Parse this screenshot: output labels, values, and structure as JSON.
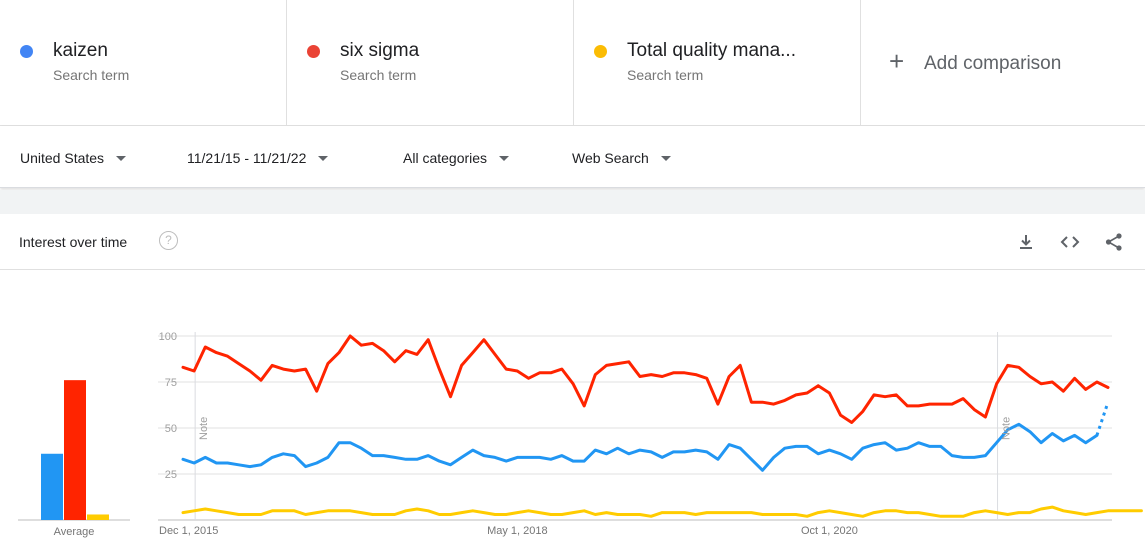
{
  "terms": [
    {
      "name": "kaizen",
      "sub": "Search term",
      "color": "#1a73e8",
      "dot": "#4285f4"
    },
    {
      "name": "six sigma",
      "sub": "Search term",
      "color": "#ea4335",
      "dot": "#ea4335"
    },
    {
      "name": "Total quality mana...",
      "sub": "Search term",
      "color": "#fbbc04",
      "dot": "#fbbc04"
    }
  ],
  "add_comparison": "Add comparison",
  "filters": {
    "region": "United States",
    "date_range": "11/21/15 - 11/21/22",
    "category": "All categories",
    "search_type": "Web Search"
  },
  "card": {
    "title": "Interest over time",
    "help": "?"
  },
  "chart_data": {
    "type": "line",
    "title": "Interest over time",
    "ylim": [
      0,
      100
    ],
    "y_ticks": [
      "100",
      "75",
      "50",
      "25"
    ],
    "x_ticks": [
      "Dec 1, 2015",
      "May 1, 2018",
      "Oct 1, 2020"
    ],
    "annotations": [
      "Note",
      "Note"
    ],
    "average_label": "Average",
    "averages": [
      {
        "series": "kaizen",
        "value": 36,
        "color": "#2196f3"
      },
      {
        "series": "six sigma",
        "value": 76,
        "color": "#ff2400"
      },
      {
        "series": "Total quality mana...",
        "value": 3,
        "color": "#ffcc00"
      }
    ],
    "series": [
      {
        "name": "kaizen",
        "color": "#2196f3",
        "values": [
          33,
          31,
          34,
          31,
          31,
          30,
          29,
          30,
          34,
          36,
          35,
          29,
          31,
          34,
          42,
          42,
          39,
          35,
          35,
          34,
          33,
          33,
          35,
          32,
          30,
          34,
          38,
          35,
          34,
          32,
          34,
          34,
          34,
          33,
          35,
          32,
          32,
          38,
          36,
          39,
          36,
          38,
          37,
          34,
          37,
          37,
          38,
          37,
          33,
          41,
          39,
          33,
          27,
          34,
          39,
          40,
          40,
          36,
          38,
          36,
          33,
          39,
          41,
          42,
          38,
          39,
          42,
          40,
          40,
          35,
          34,
          34,
          35,
          42,
          49,
          52,
          48,
          42,
          47,
          43,
          46,
          42,
          46
        ],
        "projected": [
          46,
          64
        ]
      },
      {
        "name": "six sigma",
        "color": "#ff2400",
        "values": [
          83,
          81,
          94,
          91,
          89,
          85,
          81,
          76,
          84,
          82,
          81,
          82,
          70,
          85,
          91,
          100,
          95,
          96,
          92,
          86,
          92,
          90,
          98,
          82,
          67,
          84,
          91,
          98,
          90,
          82,
          81,
          77,
          80,
          80,
          82,
          74,
          62,
          79,
          84,
          85,
          86,
          78,
          79,
          78,
          80,
          80,
          79,
          77,
          63,
          78,
          84,
          64,
          64,
          63,
          65,
          68,
          69,
          73,
          69,
          57,
          53,
          59,
          68,
          67,
          68,
          62,
          62,
          63,
          63,
          63,
          66,
          60,
          56,
          74,
          84,
          83,
          78,
          74,
          75,
          70,
          77,
          71,
          75,
          72
        ]
      },
      {
        "name": "Total quality mana...",
        "color": "#ffcc00",
        "values": [
          4,
          5,
          6,
          5,
          4,
          3,
          3,
          3,
          5,
          5,
          5,
          3,
          4,
          5,
          5,
          5,
          4,
          3,
          3,
          3,
          5,
          6,
          5,
          3,
          3,
          4,
          5,
          4,
          3,
          3,
          4,
          5,
          4,
          3,
          3,
          4,
          5,
          3,
          4,
          3,
          3,
          3,
          2,
          4,
          4,
          4,
          3,
          4,
          4,
          4,
          4,
          4,
          3,
          3,
          3,
          3,
          2,
          4,
          5,
          4,
          3,
          2,
          4,
          5,
          5,
          4,
          4,
          3,
          2,
          2,
          2,
          4,
          5,
          4,
          3,
          4,
          4,
          6,
          7,
          5,
          4,
          3,
          4,
          5,
          5,
          5,
          5
        ]
      }
    ]
  }
}
